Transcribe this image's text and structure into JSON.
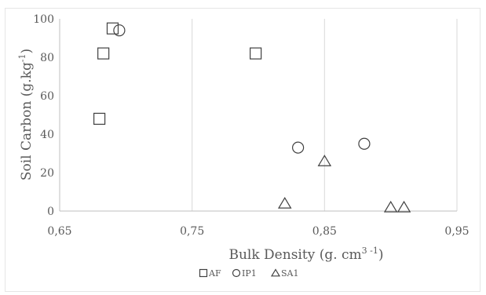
{
  "chart_data": {
    "type": "scatter",
    "xlabel": "Bulk Density  (g. cm",
    "xlabel_sup": "3 -1",
    "xlabel_end": ")",
    "ylabel": "Soil Carbon (g.kg",
    "ylabel_sup": "-1",
    "ylabel_end": ")",
    "xlim": [
      0.65,
      0.95
    ],
    "ylim": [
      0,
      100
    ],
    "x_ticks": [
      0.65,
      0.75,
      0.85,
      0.95
    ],
    "x_tick_labels": [
      "0,65",
      "0,75",
      "0,85",
      "0,95"
    ],
    "y_ticks": [
      0,
      20,
      40,
      60,
      80,
      100
    ],
    "y_tick_labels": [
      "0",
      "20",
      "40",
      "60",
      "80",
      "100"
    ],
    "grid": "vertical",
    "legend_position": "bottom",
    "series": [
      {
        "name": "AF",
        "marker": "square",
        "points": [
          [
            0.68,
            48
          ],
          [
            0.683,
            82
          ],
          [
            0.69,
            95
          ],
          [
            0.798,
            82
          ]
        ]
      },
      {
        "name": "IP1",
        "marker": "circle",
        "points": [
          [
            0.695,
            94
          ],
          [
            0.83,
            33
          ],
          [
            0.88,
            35
          ]
        ]
      },
      {
        "name": "SA1",
        "marker": "triangle",
        "points": [
          [
            0.82,
            4
          ],
          [
            0.85,
            26
          ],
          [
            0.9,
            2
          ],
          [
            0.91,
            2
          ]
        ]
      }
    ],
    "marker_color": "#404040"
  }
}
